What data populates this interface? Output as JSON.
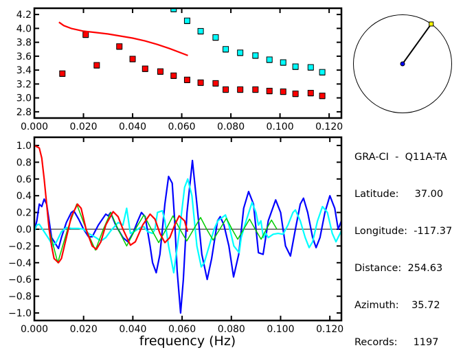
{
  "chart_data": [
    {
      "type": "scatter",
      "xlim": [
        0.0,
        0.125
      ],
      "ylim": [
        2.71,
        4.29
      ],
      "xticks": [
        "0.000",
        "0.020",
        "0.040",
        "0.060",
        "0.080",
        "0.100",
        "0.120"
      ],
      "yticks": [
        "2.8",
        "3.0",
        "3.2",
        "3.4",
        "3.6",
        "3.8",
        "4.0",
        "4.2"
      ],
      "grid": false,
      "series": [
        {
          "color": "#ff0000",
          "marker": "square",
          "x": [
            0.0114,
            0.0209,
            0.0254,
            0.0346,
            0.04,
            0.0451,
            0.0513,
            0.0567,
            0.0622,
            0.0677,
            0.0738,
            0.0779,
            0.0838,
            0.09,
            0.0957,
            0.1013,
            0.1063,
            0.1125,
            0.1172
          ],
          "y": [
            3.35,
            3.91,
            3.47,
            3.74,
            3.56,
            3.42,
            3.38,
            3.32,
            3.26,
            3.22,
            3.21,
            3.12,
            3.12,
            3.12,
            3.1,
            3.09,
            3.06,
            3.07,
            3.03
          ]
        },
        {
          "color": "#00ffff",
          "marker": "square",
          "x": [
            0.0567,
            0.0622,
            0.0677,
            0.0738,
            0.0779,
            0.0838,
            0.09,
            0.0957,
            0.1013,
            0.1063,
            0.1125,
            0.1172
          ],
          "y": [
            4.28,
            4.11,
            3.96,
            3.87,
            3.7,
            3.65,
            3.61,
            3.55,
            3.51,
            3.45,
            3.44,
            3.37
          ]
        },
        {
          "color": "#ff0000",
          "marker": "line",
          "x": [
            0.01,
            0.012,
            0.015,
            0.02,
            0.025,
            0.03,
            0.035,
            0.04,
            0.045,
            0.05,
            0.055,
            0.0625
          ],
          "y": [
            4.09,
            4.04,
            4.0,
            3.96,
            3.94,
            3.92,
            3.89,
            3.86,
            3.82,
            3.77,
            3.71,
            3.61
          ]
        }
      ]
    },
    {
      "type": "line",
      "xlabel": "frequency (Hz)",
      "xlim": [
        0.0,
        0.1247
      ],
      "ylim": [
        -1.09,
        1.098
      ],
      "xticks": [
        "0.000",
        "0.020",
        "0.040",
        "0.060",
        "0.080",
        "0.100",
        "0.120"
      ],
      "yticks": [
        "1.0",
        "0.8",
        "0.6",
        "0.4",
        "0.2",
        "0.0",
        "-0.2",
        "-0.4",
        "-0.6",
        "-0.8",
        "-1.0"
      ],
      "zero_line": true,
      "grid": false,
      "series": [
        {
          "color": "#0000ff",
          "x": [
            0,
            0.001,
            0.002,
            0.003,
            0.004,
            0.005,
            0.006,
            0.007,
            0.0098,
            0.011,
            0.013,
            0.015,
            0.016,
            0.018,
            0.02,
            0.022,
            0.0235,
            0.026,
            0.029,
            0.03,
            0.031,
            0.033,
            0.036,
            0.038,
            0.04,
            0.042,
            0.0435,
            0.045,
            0.047,
            0.048,
            0.0495,
            0.051,
            0.053,
            0.0545,
            0.056,
            0.057,
            0.058,
            0.0594,
            0.0605,
            0.062,
            0.0642,
            0.066,
            0.068,
            0.0702,
            0.072,
            0.0744,
            0.0755,
            0.077,
            0.079,
            0.0809,
            0.083,
            0.085,
            0.087,
            0.089,
            0.091,
            0.0929,
            0.095,
            0.098,
            0.1,
            0.102,
            0.104,
            0.106,
            0.108,
            0.1093,
            0.111,
            0.113,
            0.1144,
            0.116,
            0.118,
            0.12,
            0.122,
            0.1234,
            0.1247
          ],
          "y": [
            -0.02,
            0.1,
            0.3,
            0.27,
            0.36,
            0.3,
            0.1,
            -0.1,
            -0.23,
            -0.1,
            0.08,
            0.2,
            0.22,
            0.12,
            0.0,
            -0.09,
            -0.09,
            0.05,
            0.18,
            0.16,
            0.2,
            0.05,
            -0.1,
            -0.15,
            -0.05,
            0.1,
            0.2,
            0.15,
            -0.2,
            -0.4,
            -0.52,
            -0.3,
            0.3,
            0.63,
            0.55,
            0.1,
            -0.5,
            -1.0,
            -0.6,
            0.2,
            0.82,
            0.3,
            -0.3,
            -0.6,
            -0.35,
            0.1,
            0.15,
            0.05,
            -0.2,
            -0.57,
            -0.3,
            0.25,
            0.45,
            0.3,
            -0.28,
            -0.3,
            0.1,
            0.35,
            0.2,
            -0.2,
            -0.32,
            0.0,
            0.3,
            0.37,
            0.2,
            -0.1,
            -0.22,
            -0.1,
            0.2,
            0.4,
            0.25,
            0.0,
            0.1
          ]
        },
        {
          "color": "#00ffff",
          "x": [
            0,
            0.001,
            0.002,
            0.004,
            0.006,
            0.0075,
            0.009,
            0.011,
            0.013,
            0.015,
            0.018,
            0.02,
            0.022,
            0.025,
            0.027,
            0.029,
            0.031,
            0.034,
            0.036,
            0.0375,
            0.039,
            0.041,
            0.043,
            0.0445,
            0.046,
            0.048,
            0.049,
            0.05,
            0.052,
            0.053,
            0.0545,
            0.0566,
            0.059,
            0.061,
            0.0623,
            0.064,
            0.066,
            0.0678,
            0.069,
            0.071,
            0.073,
            0.0745,
            0.0776,
            0.079,
            0.081,
            0.0832,
            0.084,
            0.086,
            0.0884,
            0.09,
            0.091,
            0.092,
            0.093,
            0.094,
            0.095,
            0.097,
            0.099,
            0.101,
            0.103,
            0.105,
            0.106,
            0.108,
            0.11,
            0.1116,
            0.113,
            0.115,
            0.117,
            0.119,
            0.121,
            0.1225,
            0.1247
          ],
          "y": [
            -0.02,
            0.05,
            0.06,
            -0.03,
            -0.12,
            -0.2,
            -0.15,
            -0.03,
            0.02,
            0.01,
            0.01,
            0.0,
            -0.05,
            -0.1,
            -0.14,
            -0.1,
            -0.02,
            0.08,
            0.05,
            0.25,
            -0.05,
            -0.02,
            0.02,
            0.03,
            -0.03,
            -0.05,
            0.0,
            0.2,
            0.22,
            0.1,
            -0.2,
            -0.52,
            0.0,
            0.5,
            0.6,
            0.4,
            -0.2,
            -0.45,
            -0.4,
            -0.2,
            0.0,
            0.1,
            0.17,
            0.05,
            -0.2,
            -0.28,
            -0.1,
            0.1,
            0.32,
            0.2,
            0.05,
            0.1,
            -0.1,
            -0.05,
            -0.1,
            -0.06,
            -0.05,
            -0.06,
            0.05,
            0.2,
            0.23,
            0.1,
            -0.1,
            -0.22,
            -0.15,
            0.1,
            0.27,
            0.2,
            -0.05,
            -0.15,
            -0.02
          ]
        },
        {
          "color": "#00cc00",
          "x": [
            0,
            0.002,
            0.003,
            0.004,
            0.005,
            0.006,
            0.0095,
            0.0135,
            0.0172,
            0.021,
            0.0248,
            0.028,
            0.031,
            0.034,
            0.0375,
            0.041,
            0.0445,
            0.0475,
            0.0505,
            0.0535,
            0.0563,
            0.0591,
            0.0619,
            0.0647,
            0.0675,
            0.07,
            0.0726,
            0.0753,
            0.078,
            0.0803,
            0.0826,
            0.085,
            0.0874,
            0.0897,
            0.0921,
            0.0942,
            0.0963,
            0.0985
          ],
          "y": [
            1.0,
            0.97,
            0.85,
            0.6,
            0.3,
            0.0,
            -0.4,
            0.0,
            0.3,
            0.0,
            -0.25,
            0.0,
            0.2,
            0.0,
            -0.2,
            0.0,
            0.17,
            0.0,
            -0.16,
            0.0,
            0.16,
            0.0,
            -0.14,
            0.0,
            0.14,
            0.0,
            -0.13,
            0.0,
            0.13,
            0.0,
            -0.12,
            0.0,
            0.12,
            0.0,
            -0.12,
            0.0,
            0.11,
            0.0
          ]
        },
        {
          "color": "#ff0000",
          "x": [
            0,
            0.002,
            0.003,
            0.004,
            0.005,
            0.006,
            0.007,
            0.008,
            0.0098,
            0.011,
            0.013,
            0.015,
            0.0175,
            0.019,
            0.021,
            0.0235,
            0.0252,
            0.027,
            0.029,
            0.032,
            0.034,
            0.036,
            0.039,
            0.041,
            0.044,
            0.047,
            0.049,
            0.051,
            0.053,
            0.055,
            0.057,
            0.0588,
            0.061,
            0.0622
          ],
          "y": [
            1.0,
            0.97,
            0.85,
            0.6,
            0.3,
            0.0,
            -0.2,
            -0.35,
            -0.4,
            -0.35,
            -0.1,
            0.15,
            0.3,
            0.25,
            0.0,
            -0.2,
            -0.24,
            -0.15,
            0.05,
            0.21,
            0.15,
            0.0,
            -0.19,
            -0.15,
            0.05,
            0.18,
            0.12,
            -0.05,
            -0.16,
            -0.1,
            0.05,
            0.16,
            0.1,
            -0.03
          ]
        }
      ]
    },
    {
      "type": "polar",
      "azimuth_deg": 35.72,
      "center_color": "#0000ff",
      "end_color": "#ffff00"
    }
  ],
  "info": {
    "title": "GRA-CI  -  Q11A-TA",
    "lines": [
      "Latitude:     37.00",
      "Longitude:  -117.37",
      "Distance:  254.63",
      "Azimuth:    35.72",
      "Records:     1197"
    ]
  }
}
